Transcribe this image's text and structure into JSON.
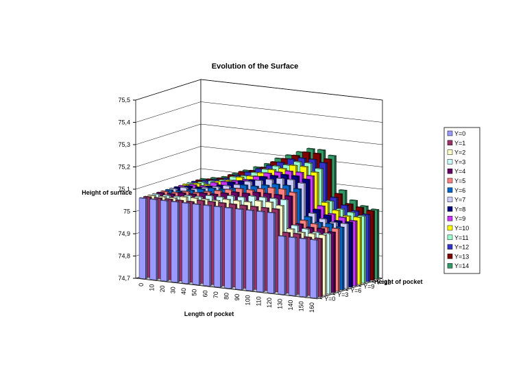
{
  "chart_data": {
    "type": "bar3d",
    "title": "Evolution of the Surface",
    "y_axis_title": "Height of surface",
    "x_axis_title": "Length of pocket",
    "depth_axis_title": "Height of pocket",
    "categories": [
      "0",
      "10",
      "20",
      "30",
      "40",
      "50",
      "60",
      "70",
      "80",
      "90",
      "100",
      "110",
      "120",
      "130",
      "140",
      "150",
      "160"
    ],
    "ylim": [
      74.7,
      75.5
    ],
    "yticks": [
      {
        "value": 74.7,
        "label": "74,7"
      },
      {
        "value": 74.8,
        "label": "74,8"
      },
      {
        "value": 74.9,
        "label": "74,9"
      },
      75,
      {
        "value": 75.1,
        "label": "75,1"
      },
      {
        "value": 75.2,
        "label": "75,2"
      },
      {
        "value": 75.3,
        "label": "75,3"
      },
      {
        "value": 75.4,
        "label": "75,4"
      },
      {
        "value": 75.5,
        "label": "75,5"
      }
    ],
    "grid": true,
    "legend": "right",
    "series": [
      {
        "name": "Y=0",
        "color": "#9999ff",
        "values": [
          75.06,
          75.06,
          75.06,
          75.06,
          75.06,
          75.06,
          75.06,
          75.06,
          75.06,
          75.06,
          75.06,
          75.06,
          75.06,
          74.96,
          74.96,
          74.96,
          74.96
        ]
      },
      {
        "name": "Y=1",
        "color": "#993366",
        "values": [
          75.06,
          75.06,
          75.06,
          75.06,
          75.06,
          75.07,
          75.07,
          75.07,
          75.07,
          75.07,
          75.07,
          75.07,
          75.07,
          74.97,
          74.97,
          74.96,
          74.96
        ]
      },
      {
        "name": "Y=2",
        "color": "#ffffcc",
        "values": [
          75.06,
          75.06,
          75.06,
          75.07,
          75.07,
          75.07,
          75.07,
          75.08,
          75.08,
          75.08,
          75.09,
          75.09,
          75.08,
          74.98,
          74.97,
          74.97,
          74.97
        ]
      },
      {
        "name": "Y=3",
        "color": "#ccffff",
        "values": [
          75.06,
          75.06,
          75.06,
          75.07,
          75.07,
          75.08,
          75.08,
          75.09,
          75.09,
          75.1,
          75.1,
          75.1,
          75.1,
          74.99,
          74.98,
          74.97,
          74.97
        ]
      },
      {
        "name": "Y=4",
        "color": "#660066",
        "values": [
          75.06,
          75.06,
          75.07,
          75.07,
          75.08,
          75.08,
          75.09,
          75.1,
          75.1,
          75.11,
          75.11,
          75.11,
          75.11,
          74.99,
          74.98,
          74.98,
          74.97
        ]
      },
      {
        "name": "Y=5",
        "color": "#ff8080",
        "values": [
          75.06,
          75.06,
          75.07,
          75.07,
          75.08,
          75.09,
          75.1,
          75.11,
          75.11,
          75.12,
          75.13,
          75.13,
          75.12,
          75,
          74.99,
          74.98,
          74.98
        ]
      },
      {
        "name": "Y=6",
        "color": "#0066cc",
        "values": [
          75.06,
          75.06,
          75.07,
          75.08,
          75.09,
          75.09,
          75.1,
          75.12,
          75.12,
          75.13,
          75.14,
          75.14,
          75.13,
          75.01,
          74.99,
          74.99,
          74.98
        ]
      },
      {
        "name": "Y=7",
        "color": "#ccccff",
        "values": [
          75.06,
          75.07,
          75.07,
          75.08,
          75.09,
          75.1,
          75.11,
          75.13,
          75.14,
          75.15,
          75.16,
          75.16,
          75.15,
          75.02,
          75,
          74.99,
          74.99
        ]
      },
      {
        "name": "Y=8",
        "color": "#000080",
        "values": [
          75.06,
          75.07,
          75.07,
          75.08,
          75.09,
          75.11,
          75.12,
          75.13,
          75.15,
          75.16,
          75.17,
          75.17,
          75.16,
          75.03,
          75.01,
          74.99,
          74.99
        ]
      },
      {
        "name": "Y=9",
        "color": "#cc33ff",
        "values": [
          75.06,
          75.07,
          75.07,
          75.09,
          75.1,
          75.11,
          75.12,
          75.14,
          75.16,
          75.17,
          75.18,
          75.18,
          75.17,
          75.04,
          75.01,
          75,
          74.99
        ]
      },
      {
        "name": "Y=10",
        "color": "#ffff00",
        "values": [
          75.06,
          75.07,
          75.07,
          75.09,
          75.1,
          75.12,
          75.13,
          75.15,
          75.17,
          75.18,
          75.2,
          75.2,
          75.18,
          75.05,
          75.02,
          75,
          75
        ]
      },
      {
        "name": "Y=11",
        "color": "#99ffcc",
        "values": [
          75.06,
          75.07,
          75.08,
          75.09,
          75.11,
          75.12,
          75.14,
          75.16,
          75.18,
          75.19,
          75.21,
          75.21,
          75.19,
          75.05,
          75.02,
          75.01,
          75
        ]
      },
      {
        "name": "Y=12",
        "color": "#3333cc",
        "values": [
          75.06,
          75.07,
          75.08,
          75.09,
          75.11,
          75.13,
          75.15,
          75.17,
          75.19,
          75.21,
          75.22,
          75.22,
          75.21,
          75.06,
          75.03,
          75.01,
          75
        ]
      },
      {
        "name": "Y=13",
        "color": "#800000",
        "values": [
          75.06,
          75.07,
          75.08,
          75.1,
          75.12,
          75.13,
          75.15,
          75.18,
          75.2,
          75.22,
          75.24,
          75.24,
          75.22,
          75.07,
          75.03,
          75.02,
          75.01
        ]
      },
      {
        "name": "Y=14",
        "color": "#339966",
        "values": [
          75.06,
          75.07,
          75.08,
          75.1,
          75.12,
          75.14,
          75.16,
          75.19,
          75.21,
          75.23,
          75.25,
          75.25,
          75.23,
          75.08,
          75.04,
          75.02,
          75.01
        ]
      }
    ]
  }
}
